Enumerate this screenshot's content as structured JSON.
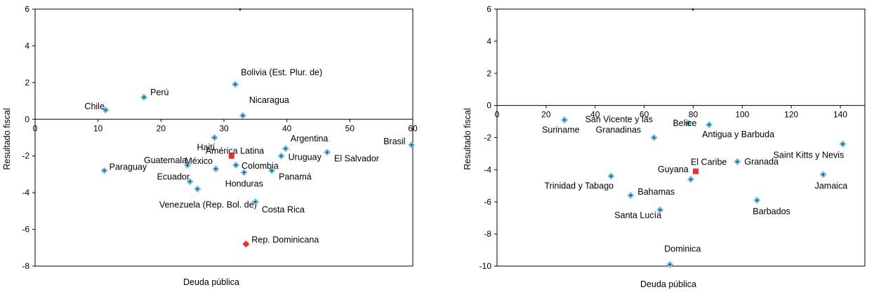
{
  "chart_data": [
    {
      "type": "scatter",
      "xlabel": "Deuda pública",
      "ylabel": "Resultado fiscal",
      "xlim": [
        0,
        60
      ],
      "ylim": [
        -8,
        6
      ],
      "xticks": [
        0,
        10,
        20,
        30,
        40,
        50,
        60
      ],
      "yticks": [
        -8,
        -6,
        -4,
        -2,
        0,
        2,
        4,
        6
      ],
      "colors": {
        "country": "#6cc5e6",
        "country_dot": "#1f3a55",
        "aggregate": "#e8302e"
      },
      "points": [
        {
          "label": "Chile",
          "x": 11.2,
          "y": 0.5,
          "kind": "country"
        },
        {
          "label": "Perú",
          "x": 17.3,
          "y": 1.2,
          "kind": "country"
        },
        {
          "label": "Bolivia (Est. Plur. de)",
          "x": 31.8,
          "y": 1.9,
          "kind": "country"
        },
        {
          "label": "Nicaragua",
          "x": 33.0,
          "y": 0.2,
          "kind": "country"
        },
        {
          "label": "Haití",
          "x": 28.5,
          "y": -1.0,
          "kind": "country"
        },
        {
          "label": "Argentina",
          "x": 39.8,
          "y": -1.6,
          "kind": "country"
        },
        {
          "label": "Brasil",
          "x": 59.8,
          "y": -1.4,
          "kind": "country"
        },
        {
          "label": "El Salvador",
          "x": 46.4,
          "y": -1.8,
          "kind": "country"
        },
        {
          "label": "Uruguay",
          "x": 39.1,
          "y": -2.0,
          "kind": "country"
        },
        {
          "label": "Guatemala",
          "x": 24.2,
          "y": -2.5,
          "kind": "country"
        },
        {
          "label": "México",
          "x": 28.7,
          "y": -2.7,
          "kind": "country"
        },
        {
          "label": "Colombia",
          "x": 31.9,
          "y": -2.5,
          "kind": "country"
        },
        {
          "label": "Paraguay",
          "x": 11.0,
          "y": -2.8,
          "kind": "country"
        },
        {
          "label": "Honduras",
          "x": 33.2,
          "y": -2.9,
          "kind": "country"
        },
        {
          "label": "Panamá",
          "x": 37.6,
          "y": -2.8,
          "kind": "country"
        },
        {
          "label": "Ecuador",
          "x": 24.6,
          "y": -3.4,
          "kind": "country"
        },
        {
          "label": "",
          "x": 25.8,
          "y": -3.8,
          "kind": "country"
        },
        {
          "label": "Venezuela (Rep. Bol. de)",
          "x": 35.0,
          "y": -4.5,
          "kind": "country"
        },
        {
          "label": "Costa Rica",
          "x": 35.0,
          "y": -4.5,
          "kind": "country"
        },
        {
          "label": "América Latina",
          "x": 31.2,
          "y": -2.0,
          "kind": "aggregate_square"
        },
        {
          "label": "Rep. Dominicana",
          "x": 33.5,
          "y": -6.8,
          "kind": "aggregate_diamond"
        }
      ]
    },
    {
      "type": "scatter",
      "xlabel": "Deuda pública",
      "ylabel": "Resultado fiscal",
      "xlim": [
        0,
        150
      ],
      "ylim": [
        -10,
        6
      ],
      "xticks": [
        0,
        20,
        40,
        60,
        80,
        100,
        120,
        140
      ],
      "yticks": [
        -10,
        -8,
        -6,
        -4,
        -2,
        0,
        2,
        4,
        6
      ],
      "colors": {
        "country": "#6cc5e6",
        "country_dot": "#1f3a55",
        "aggregate": "#e8302e"
      },
      "points": [
        {
          "label": "Suriname",
          "x": 27.5,
          "y": -0.9,
          "kind": "country"
        },
        {
          "label": "Belice",
          "x": 78.0,
          "y": -1.1,
          "kind": "country"
        },
        {
          "label": "Antigua y Barbuda",
          "x": 86.5,
          "y": -1.2,
          "kind": "country"
        },
        {
          "label": "San Vicente y las Granadinas",
          "x": 64.0,
          "y": -2.0,
          "kind": "country"
        },
        {
          "label": "Saint Kitts y Nevis",
          "x": 141.0,
          "y": -2.4,
          "kind": "country"
        },
        {
          "label": "Granada",
          "x": 98.0,
          "y": -3.5,
          "kind": "country"
        },
        {
          "label": "Trinidad y Tabago",
          "x": 46.5,
          "y": -4.4,
          "kind": "country"
        },
        {
          "label": "Jamaica",
          "x": 133.0,
          "y": -4.3,
          "kind": "country"
        },
        {
          "label": "Guyana",
          "x": 79.0,
          "y": -4.6,
          "kind": "country"
        },
        {
          "label": "Bahamas",
          "x": 54.5,
          "y": -5.6,
          "kind": "country"
        },
        {
          "label": "Barbados",
          "x": 106.0,
          "y": -5.9,
          "kind": "country"
        },
        {
          "label": "Santa Lucía",
          "x": 66.5,
          "y": -6.5,
          "kind": "country"
        },
        {
          "label": "Dominica",
          "x": 70.5,
          "y": -9.9,
          "kind": "country"
        },
        {
          "label": "El Caribe",
          "x": 81.0,
          "y": -4.1,
          "kind": "aggregate_square"
        }
      ]
    }
  ]
}
